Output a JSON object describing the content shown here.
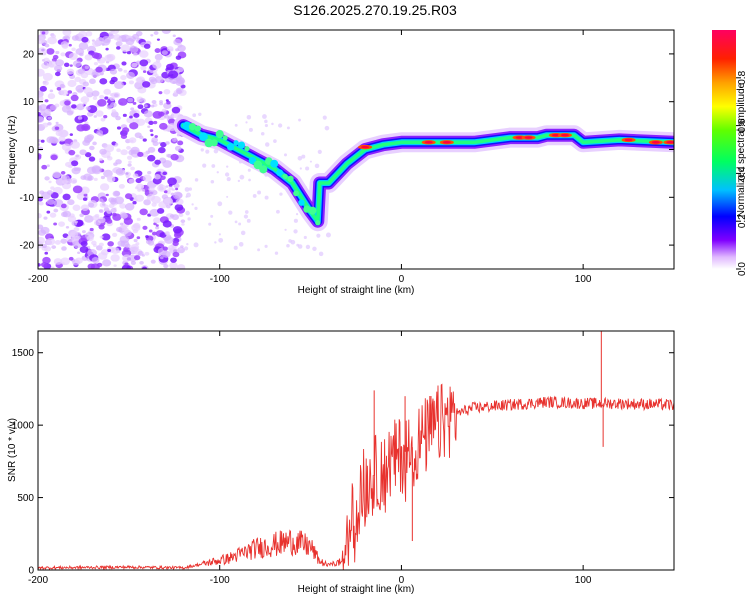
{
  "title": "S126.2025.270.19.25.R03",
  "chart_data": [
    {
      "type": "heatmap",
      "xlabel": "Height of straight line (km)",
      "ylabel": "Frequency (Hz)",
      "xlim": [
        -200,
        150
      ],
      "ylim": [
        -25,
        25
      ],
      "xticks": [
        -200,
        -100,
        0,
        100
      ],
      "yticks": [
        -20,
        -10,
        0,
        10,
        20
      ],
      "ridge": [
        {
          "x": -120,
          "y": 5
        },
        {
          "x": -110,
          "y": 3
        },
        {
          "x": -100,
          "y": 2
        },
        {
          "x": -90,
          "y": 0
        },
        {
          "x": -80,
          "y": -2
        },
        {
          "x": -70,
          "y": -4
        },
        {
          "x": -60,
          "y": -7
        },
        {
          "x": -55,
          "y": -10
        },
        {
          "x": -50,
          "y": -13
        },
        {
          "x": -46,
          "y": -15
        },
        {
          "x": -45,
          "y": -7
        },
        {
          "x": -40,
          "y": -7
        },
        {
          "x": -35,
          "y": -5
        },
        {
          "x": -30,
          "y": -3
        },
        {
          "x": -20,
          "y": 0
        },
        {
          "x": -10,
          "y": 1
        },
        {
          "x": 0,
          "y": 1.5
        },
        {
          "x": 20,
          "y": 1.5
        },
        {
          "x": 40,
          "y": 1.5
        },
        {
          "x": 60,
          "y": 2.5
        },
        {
          "x": 75,
          "y": 2.5
        },
        {
          "x": 80,
          "y": 3
        },
        {
          "x": 95,
          "y": 3
        },
        {
          "x": 100,
          "y": 1.5
        },
        {
          "x": 120,
          "y": 2
        },
        {
          "x": 150,
          "y": 1.5
        }
      ]
    },
    {
      "type": "line",
      "xlabel": "Height of straight line (km)",
      "ylabel": "SNR (10 * v/v)",
      "xlim": [
        -200,
        150
      ],
      "ylim": [
        0,
        1650
      ],
      "xticks": [
        -200,
        -100,
        0,
        100
      ],
      "yticks": [
        0,
        500,
        1000,
        1500
      ],
      "color": "#e8322e",
      "envelope": [
        {
          "x": -200,
          "y": 15
        },
        {
          "x": -150,
          "y": 20
        },
        {
          "x": -120,
          "y": 15
        },
        {
          "x": -110,
          "y": 40
        },
        {
          "x": -95,
          "y": 80
        },
        {
          "x": -80,
          "y": 150
        },
        {
          "x": -60,
          "y": 200
        },
        {
          "x": -50,
          "y": 160
        },
        {
          "x": -45,
          "y": 60
        },
        {
          "x": -40,
          "y": 30
        },
        {
          "x": -33,
          "y": 60
        },
        {
          "x": -30,
          "y": 200
        },
        {
          "x": -25,
          "y": 450
        },
        {
          "x": -20,
          "y": 600
        },
        {
          "x": -10,
          "y": 700
        },
        {
          "x": 0,
          "y": 800
        },
        {
          "x": 10,
          "y": 880
        },
        {
          "x": 20,
          "y": 1000
        },
        {
          "x": 30,
          "y": 1080
        },
        {
          "x": 40,
          "y": 1120
        },
        {
          "x": 60,
          "y": 1140
        },
        {
          "x": 80,
          "y": 1160
        },
        {
          "x": 100,
          "y": 1150
        },
        {
          "x": 110,
          "y": 1150
        },
        {
          "x": 120,
          "y": 1150
        },
        {
          "x": 150,
          "y": 1140
        }
      ],
      "peaks": [
        {
          "x": -15,
          "y": 1240
        },
        {
          "x": 2,
          "y": 1200
        },
        {
          "x": 110,
          "y": 1650
        },
        {
          "x": 111,
          "y": 850
        },
        {
          "x": 6,
          "y": 200
        }
      ]
    }
  ],
  "colorbar": {
    "label": "Normalized spectral amplitude",
    "ticks": [
      0.0,
      0.2,
      0.4,
      0.6,
      0.8
    ],
    "min": 0,
    "max": 1
  }
}
